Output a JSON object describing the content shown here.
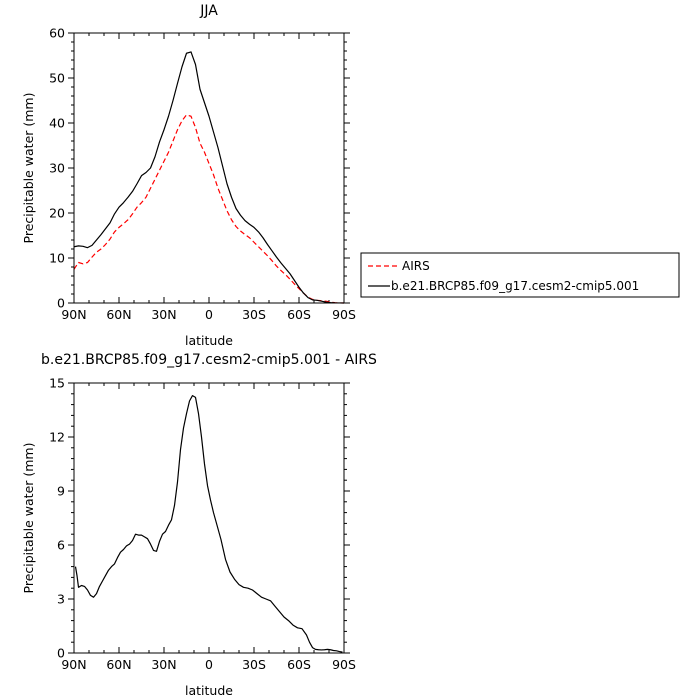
{
  "chart_data": [
    {
      "type": "line",
      "title": "JJA",
      "xlabel": "latitude",
      "ylabel": "Precipitable water (mm)",
      "xlim": [
        90,
        -90
      ],
      "ylim": [
        0,
        60
      ],
      "xticks": [
        90,
        60,
        30,
        0,
        -30,
        -60,
        -90
      ],
      "xtick_labels": [
        "90N",
        "60N",
        "30N",
        "0",
        "30S",
        "60S",
        "90S"
      ],
      "yticks": [
        0,
        10,
        20,
        30,
        40,
        50,
        60
      ],
      "ytick_labels": [
        "0",
        "10",
        "20",
        "30",
        "40",
        "50",
        "60"
      ],
      "grid": false,
      "legend": "right",
      "series": [
        {
          "name": "AIRS",
          "color": "#ff0000",
          "dash": "dashed",
          "x": [
            90,
            87,
            84,
            81,
            78,
            75,
            72,
            69,
            66,
            63,
            60,
            57,
            54,
            51,
            48,
            45,
            42,
            39,
            36,
            33,
            30,
            27,
            24,
            21,
            18,
            15,
            12,
            9,
            6,
            3,
            0,
            -3,
            -6,
            -9,
            -12,
            -15,
            -18,
            -21,
            -24,
            -27,
            -30,
            -33,
            -36,
            -39,
            -42,
            -45,
            -48,
            -51,
            -54,
            -57,
            -60,
            -63,
            -66,
            -69,
            -72,
            -75,
            -78,
            -81,
            -84,
            -87,
            -90
          ],
          "values": [
            7.5,
            9,
            8.7,
            9,
            10.2,
            11.3,
            12,
            13,
            14.2,
            15.8,
            16.8,
            17.6,
            18.5,
            19.8,
            21.3,
            22.3,
            23.5,
            25.5,
            27.5,
            29.5,
            31.5,
            33.5,
            36,
            38.5,
            40.5,
            41.8,
            41.5,
            39,
            35.5,
            33.5,
            31,
            28.5,
            25.5,
            23,
            20.5,
            18.5,
            17,
            16,
            15.2,
            14.5,
            13.5,
            12.5,
            11.5,
            10.5,
            9.4,
            8.2,
            7.2,
            6.3,
            5.3,
            4.2,
            3.2,
            2.2,
            1.3,
            0.8,
            0.6,
            0.5,
            0.4,
            0.2,
            0.05,
            0.02,
            0
          ]
        },
        {
          "name": "b.e21.BRCP85.f09_g17.cesm2-cmip5.001",
          "color": "#000000",
          "dash": "solid",
          "x": [
            90,
            87,
            84,
            81,
            78,
            75,
            72,
            69,
            66,
            63,
            60,
            57,
            54,
            51,
            48,
            45,
            42,
            39,
            36,
            33,
            30,
            27,
            24,
            21,
            18,
            15,
            12,
            9,
            6,
            3,
            0,
            -3,
            -6,
            -9,
            -12,
            -15,
            -18,
            -21,
            -24,
            -27,
            -30,
            -33,
            -36,
            -39,
            -42,
            -45,
            -48,
            -51,
            -54,
            -57,
            -60,
            -63,
            -66,
            -69,
            -72,
            -75,
            -78,
            -81,
            -84,
            -87,
            -90
          ],
          "values": [
            12.5,
            12.7,
            12.6,
            12.3,
            12.8,
            14,
            15.2,
            16.5,
            17.8,
            19.8,
            21.3,
            22.3,
            23.5,
            24.8,
            26.5,
            28.3,
            29,
            30,
            32.5,
            35.8,
            38.5,
            41.5,
            45,
            48.8,
            52.5,
            55.5,
            55.8,
            53,
            47.5,
            44.5,
            41.5,
            38,
            34.5,
            30.5,
            26.5,
            23.5,
            21,
            19.5,
            18.3,
            17.5,
            16.8,
            15.8,
            14.5,
            13,
            11.6,
            10.2,
            8.9,
            7.7,
            6.5,
            5,
            3.5,
            2.2,
            1.2,
            0.7,
            0.6,
            0.4,
            0.2,
            0.1,
            0.03,
            0.01,
            0
          ]
        }
      ]
    },
    {
      "type": "line",
      "title": "b.e21.BRCP85.f09_g17.cesm2-cmip5.001 - AIRS",
      "xlabel": "latitude",
      "ylabel": "Precipitable water (mm)",
      "xlim": [
        90,
        -90
      ],
      "ylim": [
        0,
        15
      ],
      "xticks": [
        90,
        60,
        30,
        0,
        -30,
        -60,
        -90
      ],
      "xtick_labels": [
        "90N",
        "60N",
        "30N",
        "0",
        "30S",
        "60S",
        "90S"
      ],
      "yticks": [
        0,
        3,
        6,
        9,
        12,
        15
      ],
      "ytick_labels": [
        "0",
        "3",
        "6",
        "9",
        "12",
        "15"
      ],
      "grid": false,
      "series": [
        {
          "color": "#000000",
          "dash": "solid",
          "x": [
            89,
            88,
            87,
            85,
            83,
            81,
            79,
            77,
            75,
            73,
            71,
            69,
            67,
            65,
            63,
            61,
            59,
            57,
            55,
            53,
            51,
            49,
            47,
            45,
            43,
            41,
            39,
            37,
            35,
            33,
            31,
            29,
            27,
            25,
            23,
            21,
            19,
            17,
            15,
            13,
            11,
            9,
            7,
            5,
            3,
            1,
            -1,
            -3,
            -5,
            -8,
            -11,
            -14,
            -17,
            -20,
            -23,
            -26,
            -29,
            -32,
            -35,
            -38,
            -41,
            -44,
            -47,
            -50,
            -53,
            -56,
            -59,
            -62,
            -65,
            -67,
            -69,
            -71,
            -73,
            -75,
            -77,
            -79,
            -81,
            -83,
            -85,
            -87,
            -89
          ],
          "values": [
            4.8,
            4.3,
            3.65,
            3.75,
            3.7,
            3.5,
            3.2,
            3.1,
            3.3,
            3.7,
            4.0,
            4.3,
            4.6,
            4.8,
            4.95,
            5.3,
            5.6,
            5.75,
            5.95,
            6.05,
            6.25,
            6.6,
            6.55,
            6.55,
            6.45,
            6.35,
            6.05,
            5.7,
            5.65,
            6.2,
            6.6,
            6.75,
            7.1,
            7.4,
            8.2,
            9.5,
            11.3,
            12.5,
            13.3,
            14.0,
            14.3,
            14.2,
            13.3,
            12.0,
            10.5,
            9.3,
            8.5,
            7.8,
            7.2,
            6.3,
            5.2,
            4.5,
            4.1,
            3.8,
            3.65,
            3.6,
            3.5,
            3.3,
            3.1,
            3.0,
            2.9,
            2.6,
            2.3,
            2.0,
            1.8,
            1.55,
            1.4,
            1.35,
            1.0,
            0.6,
            0.3,
            0.2,
            0.18,
            0.17,
            0.18,
            0.2,
            0.18,
            0.14,
            0.12,
            0.08,
            0.05
          ]
        }
      ]
    }
  ]
}
